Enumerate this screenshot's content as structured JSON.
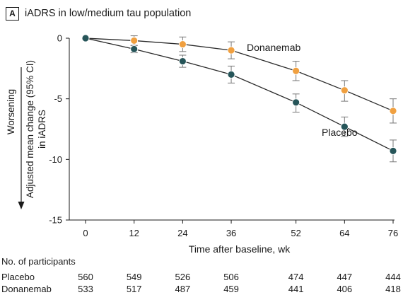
{
  "panel": {
    "letter": "A",
    "title": "iADRS in low/medium tau population"
  },
  "chart_data": {
    "type": "line",
    "x": [
      0,
      12,
      24,
      36,
      52,
      64,
      76
    ],
    "xlabel": "Time after baseline, wk",
    "ylabel_lines": [
      "Adjusted mean change (95% CI)",
      "in iADRS"
    ],
    "direction_label": "Worsening",
    "xlim": [
      0,
      76
    ],
    "ylim": [
      -15,
      0
    ],
    "yticks": [
      0,
      -5,
      -10,
      -15
    ],
    "grid": false,
    "series": [
      {
        "name": "Donanemab",
        "color": "#f0a040",
        "y": [
          0,
          -0.2,
          -0.5,
          -1.0,
          -2.7,
          -4.3,
          -6.0
        ],
        "ci_low": [
          0,
          -0.6,
          -1.1,
          -1.7,
          -3.5,
          -5.2,
          -7.0
        ],
        "ci_high": [
          0,
          0.2,
          0.1,
          -0.3,
          -1.9,
          -3.5,
          -5.0
        ]
      },
      {
        "name": "Placebo",
        "color": "#265559",
        "y": [
          0,
          -0.9,
          -1.9,
          -3.0,
          -5.3,
          -7.3,
          -9.3
        ],
        "ci_low": [
          0,
          -1.2,
          -2.4,
          -3.7,
          -6.1,
          -8.1,
          -10.2
        ],
        "ci_high": [
          0,
          -0.6,
          -1.4,
          -2.3,
          -4.6,
          -6.5,
          -8.4
        ]
      }
    ]
  },
  "participants": {
    "heading": "No. of participants",
    "rows": [
      {
        "label": "Placebo",
        "counts": [
          "560",
          "549",
          "526",
          "506",
          "474",
          "447",
          "444"
        ]
      },
      {
        "label": "Donanemab",
        "counts": [
          "533",
          "517",
          "487",
          "459",
          "441",
          "406",
          "418"
        ]
      }
    ]
  }
}
